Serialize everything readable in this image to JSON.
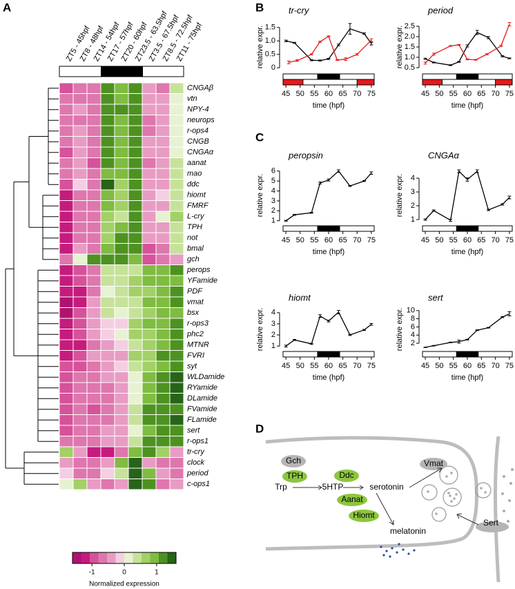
{
  "panels": [
    "A",
    "B",
    "C",
    "D"
  ],
  "chart_data": [
    {
      "type": "heatmap",
      "columns": [
        "ZT5 - 45hpf",
        "ZT8 - 48hpf",
        "ZT14 - 54hpf",
        "ZT17 - 57hpf",
        "ZT20 - 60hpf",
        "ZT23.5 - 63.5hpf",
        "ZT3.5 - 67.5hpf",
        "ZT8.5 - 72.5hpf",
        "ZT11 - 75hpf"
      ],
      "rows": [
        "CNGAβ",
        "vtn",
        "NPY-4",
        "neurops",
        "r-ops4",
        "CNGB",
        "CNGAα",
        "aanat",
        "mao",
        "ddc",
        "hiomt",
        "FMRF",
        "L-cry",
        "TPH",
        "not",
        "bmal",
        "gch",
        "perops",
        "YFamide",
        "PDF",
        "vmat",
        "bsx",
        "r-ops3",
        "phc2",
        "MTNR",
        "FVRI",
        "syt",
        "WLDamide",
        "RYamide",
        "DLamide",
        "FVamide",
        "FLamide",
        "sert",
        "r-ops1",
        "tr-cry",
        "clock",
        "period",
        "c-ops1"
      ],
      "values": [
        [
          -0.9,
          -0.6,
          -0.8,
          1.2,
          1.0,
          1.2,
          -0.5,
          -0.6,
          0.3
        ],
        [
          -0.8,
          -0.6,
          -0.8,
          1.2,
          1.0,
          1.2,
          -0.5,
          -0.5,
          0.2
        ],
        [
          -0.8,
          -0.5,
          -0.8,
          1.2,
          1.1,
          1.2,
          -0.5,
          -0.4,
          0.2
        ],
        [
          -0.8,
          -0.6,
          -0.8,
          1.2,
          1.0,
          1.2,
          -0.6,
          -0.5,
          0.1
        ],
        [
          -0.8,
          -0.5,
          -0.7,
          1.1,
          1.0,
          1.3,
          -0.6,
          -0.4,
          0.1
        ],
        [
          -0.8,
          -0.5,
          -0.7,
          1.1,
          1.0,
          1.2,
          -0.5,
          -0.3,
          0.2
        ],
        [
          -0.9,
          -0.5,
          -0.8,
          1.2,
          0.9,
          1.2,
          -0.5,
          -0.4,
          0.2
        ],
        [
          -0.7,
          -0.5,
          -0.9,
          1.1,
          0.9,
          1.2,
          -0.6,
          -0.4,
          0.3
        ],
        [
          -0.8,
          -0.5,
          -0.7,
          1.0,
          0.8,
          1.1,
          -0.5,
          -0.5,
          0.5
        ],
        [
          -1.0,
          -0.2,
          -0.6,
          1.5,
          0.7,
          1.1,
          -0.4,
          -0.4,
          0.4
        ],
        [
          -1.2,
          -0.7,
          -0.8,
          0.9,
          0.6,
          1.2,
          -0.4,
          -0.2,
          0.4
        ],
        [
          -1.2,
          -0.7,
          -0.8,
          0.8,
          0.7,
          1.2,
          -0.3,
          -0.4,
          0.5
        ],
        [
          -1.2,
          -0.7,
          -0.8,
          0.7,
          0.3,
          1.2,
          -0.4,
          0.2,
          0.7
        ],
        [
          -1.1,
          -0.7,
          -0.8,
          0.7,
          1.0,
          1.3,
          -0.5,
          -0.4,
          0.3
        ],
        [
          -1.1,
          -0.7,
          -0.8,
          0.6,
          1.2,
          1.1,
          -0.5,
          -0.3,
          0.4
        ],
        [
          -1.1,
          -0.3,
          -0.7,
          0.8,
          1.2,
          1.2,
          -0.9,
          -0.6,
          0.4
        ],
        [
          -0.8,
          0.2,
          1.3,
          1.3,
          1.2,
          0.9,
          -0.9,
          -0.7,
          -0.4
        ],
        [
          -1.2,
          -1.0,
          -0.8,
          0.4,
          0.5,
          0.5,
          0.9,
          1.0,
          1.1
        ],
        [
          -1.2,
          -0.9,
          -0.8,
          0.3,
          0.4,
          0.7,
          0.9,
          0.9,
          1.0
        ],
        [
          -1.3,
          -1.1,
          -0.8,
          0.1,
          0.4,
          0.7,
          0.7,
          0.9,
          1.1
        ],
        [
          -1.5,
          -1.1,
          -0.5,
          0.3,
          0.4,
          0.5,
          0.8,
          0.8,
          1.1
        ],
        [
          -1.4,
          -1.0,
          -0.5,
          0.3,
          0.1,
          0.4,
          0.7,
          1.0,
          1.0
        ],
        [
          -1.3,
          -1.0,
          -0.4,
          -0.2,
          -0.2,
          0.6,
          0.8,
          0.9,
          1.1
        ],
        [
          -1.3,
          -1.0,
          -0.5,
          -0.2,
          0.0,
          0.6,
          0.7,
          0.9,
          1.1
        ],
        [
          -1.2,
          -1.1,
          -0.6,
          -0.4,
          -0.1,
          0.5,
          0.7,
          0.9,
          1.1
        ],
        [
          -1.1,
          -1.0,
          -0.5,
          -0.5,
          -0.3,
          0.6,
          0.7,
          1.1,
          1.1
        ],
        [
          -1.0,
          -0.9,
          -0.6,
          -0.4,
          -0.2,
          0.5,
          0.7,
          1.0,
          1.2
        ],
        [
          -1.0,
          -0.8,
          -0.7,
          -0.5,
          -0.3,
          0.2,
          0.9,
          1.2,
          1.4
        ],
        [
          -1.0,
          -0.8,
          -0.7,
          -0.6,
          -0.4,
          0.2,
          0.9,
          1.2,
          1.4
        ],
        [
          -0.9,
          -0.7,
          -0.6,
          -0.6,
          -0.4,
          0.2,
          1.0,
          1.2,
          1.4
        ],
        [
          -0.9,
          -0.7,
          -1.0,
          -0.6,
          -0.4,
          0.3,
          1.1,
          1.1,
          1.3
        ],
        [
          -0.9,
          -0.6,
          -0.6,
          -0.6,
          -0.4,
          0.3,
          1.1,
          1.1,
          1.4
        ],
        [
          -1.0,
          -0.6,
          -0.7,
          -0.5,
          -0.3,
          0.2,
          0.9,
          1.2,
          1.2
        ],
        [
          -0.8,
          -0.6,
          -0.7,
          -0.4,
          -0.4,
          0.4,
          1.2,
          1.3,
          1.2
        ],
        [
          0.6,
          -0.4,
          -1.2,
          -1.2,
          -0.7,
          1.0,
          1.3,
          0.6,
          -0.3
        ],
        [
          -0.5,
          -0.8,
          -0.8,
          -0.4,
          0.9,
          1.5,
          -0.4,
          -0.7,
          -0.6
        ],
        [
          -0.2,
          -0.7,
          -0.6,
          -0.2,
          0.3,
          1.5,
          0.8,
          -0.5,
          -0.8
        ],
        [
          0.2,
          0.6,
          -0.4,
          -0.8,
          -0.5,
          1.5,
          1.1,
          -0.6,
          -0.3
        ]
      ],
      "zlim": [
        -1.6,
        1.6
      ],
      "zticks": [
        -1,
        0,
        1
      ],
      "colors": [
        "#b0126f",
        "#c51b7d",
        "#d6529a",
        "#de77ae",
        "#e89cc4",
        "#f4cfe3",
        "#e6f2d2",
        "#c6e29a",
        "#a3d067",
        "#7fbc41",
        "#4d9221",
        "#276419"
      ],
      "colorbar_label": "Normalized expression"
    },
    {
      "type": "line",
      "title": "tr-cry",
      "x_label": "time (hpf)",
      "y_label": "relative expr.",
      "xlim": [
        44,
        76
      ],
      "xticks": [
        45,
        50,
        55,
        60,
        65,
        70,
        75
      ],
      "ylim": [
        -0.15,
        1.7
      ],
      "yticks": [
        0,
        0.5,
        {
          "value": 1,
          "label": "1.0"
        },
        1.5
      ],
      "dark_period": [
        56,
        64
      ],
      "red_bars": [
        [
          44,
          51
        ],
        [
          70,
          76
        ]
      ],
      "series": [
        {
          "color": "#000000",
          "x": [
            45,
            48,
            54,
            57,
            60,
            63.5,
            67.5,
            72.5,
            75
          ],
          "values": [
            1.0,
            0.93,
            0.28,
            0.27,
            0.33,
            0.85,
            1.45,
            1.27,
            0.9
          ],
          "errors": [
            0.03,
            0.02,
            0.02,
            0.02,
            0.02,
            0.03,
            0.2,
            0.03,
            0.05
          ]
        },
        {
          "color": "#e41a1c",
          "x": [
            46,
            49,
            54,
            57,
            60,
            63,
            66,
            70,
            75
          ],
          "values": [
            0.2,
            0.27,
            0.5,
            0.97,
            1.17,
            0.29,
            0.32,
            0.5,
            1.03
          ],
          "errors": [
            0.05,
            0.03,
            0.02,
            0.02,
            0.02,
            0.02,
            0.05,
            0.03,
            0.05
          ]
        }
      ]
    },
    {
      "type": "line",
      "title": "period",
      "x_label": "time (hpf)",
      "y_label": "relative expr.",
      "xlim": [
        44,
        76
      ],
      "xticks": [
        45,
        50,
        55,
        60,
        65,
        70,
        75
      ],
      "ylim": [
        0.3,
        2.7
      ],
      "yticks": [
        0.5,
        {
          "value": 1,
          "label": "1.0"
        },
        1.5,
        {
          "value": 2,
          "label": "2.0"
        },
        2.5
      ],
      "dark_period": [
        56,
        64
      ],
      "red_bars": [
        [
          44,
          51
        ],
        [
          70,
          76
        ]
      ],
      "series": [
        {
          "color": "#000000",
          "x": [
            45,
            48,
            54,
            57,
            60,
            63.5,
            67.5,
            72.5,
            75
          ],
          "values": [
            0.93,
            0.75,
            0.62,
            0.78,
            1.55,
            2.2,
            1.95,
            1.05,
            0.95
          ],
          "errors": [
            0.03,
            0.02,
            0.02,
            0.02,
            0.05,
            0.1,
            0.05,
            0.03,
            0.02
          ]
        },
        {
          "color": "#e41a1c",
          "x": [
            45,
            48,
            54,
            57,
            60,
            63,
            67,
            72,
            75
          ],
          "values": [
            0.72,
            1.15,
            1.55,
            1.6,
            0.9,
            0.88,
            1.15,
            1.55,
            2.6
          ],
          "errors": [
            0.05,
            0.05,
            0.02,
            0.02,
            0.02,
            0.02,
            0.03,
            0.03,
            0.08
          ]
        }
      ]
    },
    {
      "type": "line",
      "title": "peropsin",
      "x_label": "time (hpf)",
      "y_label": "relative expr.",
      "xlim": [
        44,
        76
      ],
      "xticks": [
        45,
        50,
        55,
        60,
        65,
        70,
        75
      ],
      "ylim": [
        0.7,
        6.4
      ],
      "yticks": [
        1,
        2,
        3,
        4,
        5,
        6
      ],
      "dark_period": [
        56,
        64
      ],
      "series": [
        {
          "color": "#000000",
          "x": [
            45,
            48,
            54,
            57,
            60,
            63.5,
            67.5,
            72.5,
            75
          ],
          "values": [
            1.0,
            1.6,
            1.8,
            4.8,
            5.1,
            6.0,
            4.5,
            5.0,
            5.8
          ],
          "errors": [
            0.05,
            0.05,
            0.05,
            0.1,
            0.1,
            0.12,
            0.05,
            0.05,
            0.12
          ]
        }
      ]
    },
    {
      "type": "line",
      "title": "CNGAα",
      "x_label": "time (hpf)",
      "y_label": "relative expr.",
      "xlim": [
        44,
        76
      ],
      "xticks": [
        45,
        50,
        55,
        60,
        65,
        70,
        75
      ],
      "ylim": [
        0.7,
        4.8
      ],
      "yticks": [
        1,
        2,
        3,
        4
      ],
      "dark_period": [
        56,
        64
      ],
      "series": [
        {
          "color": "#000000",
          "x": [
            45,
            48,
            54,
            57,
            60,
            63.5,
            67.5,
            72.5,
            75
          ],
          "values": [
            1.0,
            1.65,
            0.95,
            4.5,
            3.9,
            4.5,
            1.7,
            2.1,
            2.6
          ],
          "errors": [
            0.05,
            0.05,
            0.08,
            0.1,
            0.12,
            0.1,
            0.05,
            0.05,
            0.1
          ]
        }
      ]
    },
    {
      "type": "line",
      "title": "hiomt",
      "x_label": "time (hpf)",
      "y_label": "relative expr.",
      "xlim": [
        44,
        76
      ],
      "xticks": [
        45,
        50,
        55,
        60,
        65,
        70,
        75
      ],
      "ylim": [
        0.7,
        4.3
      ],
      "yticks": [
        1,
        2,
        3,
        4
      ],
      "dark_period": [
        56,
        64
      ],
      "series": [
        {
          "color": "#000000",
          "x": [
            45,
            48,
            54,
            57,
            60,
            63.5,
            67.5,
            72.5,
            75
          ],
          "values": [
            1.0,
            1.55,
            1.2,
            3.7,
            3.25,
            4.05,
            2.0,
            2.45,
            2.95
          ],
          "errors": [
            0.08,
            0.05,
            0.05,
            0.12,
            0.08,
            0.15,
            0.05,
            0.05,
            0.08
          ]
        }
      ]
    },
    {
      "type": "line",
      "title": "sert",
      "x_label": "time (hpf)",
      "y_label": "relative expr.",
      "xlim": [
        44,
        76
      ],
      "xticks": [
        45,
        50,
        55,
        60,
        65,
        70,
        75
      ],
      "ylim": [
        0.5,
        10.3
      ],
      "yticks": [
        2,
        4,
        6,
        8,
        10
      ],
      "dark_period": [
        56,
        64
      ],
      "series": [
        {
          "color": "#000000",
          "x": [
            45,
            48,
            54,
            57,
            60,
            63.5,
            67.5,
            72.5,
            75
          ],
          "values": [
            1.0,
            1.4,
            2.2,
            2.4,
            2.9,
            5.2,
            5.8,
            8.4,
            9.2
          ],
          "errors": [
            0.05,
            0.08,
            0.1,
            0.35,
            0.1,
            0.1,
            0.08,
            0.12,
            0.5
          ]
        }
      ]
    }
  ],
  "diagram": {
    "enzymes": [
      "Gch",
      "TPH",
      "Ddc",
      "Aanat",
      "Hiomt"
    ],
    "metabolites": [
      "Trp",
      "5HTP",
      "serotonin",
      "melatonin"
    ],
    "transporters": [
      "Vmat",
      "Sert"
    ]
  }
}
